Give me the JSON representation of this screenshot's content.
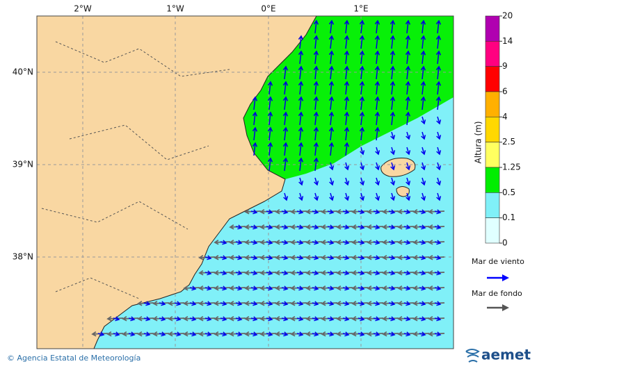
{
  "map": {
    "lon_labels": [
      "2°W",
      "1°W",
      "0°E",
      "1°E"
    ],
    "lat_labels": [
      "40°N",
      "39°N",
      "38°N"
    ]
  },
  "colorbar": {
    "title": "Altura (m)",
    "ticks": [
      "20",
      "14",
      "9",
      "6",
      "4",
      "2.5",
      "1.25",
      "0.5",
      "0.1",
      "0"
    ]
  },
  "legend": {
    "items": [
      "Mar de viento",
      "Mar de fondo"
    ]
  },
  "footer": {
    "credit": "© Agencia Estatal de Meteorología",
    "logo": "aemet"
  }
}
